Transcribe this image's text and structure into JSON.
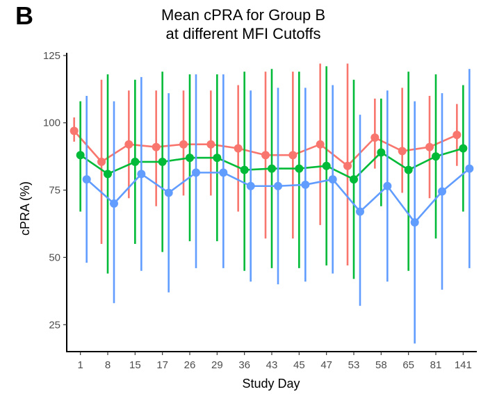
{
  "panel_label": "B",
  "chart_data": {
    "type": "line",
    "title": [
      "Mean cPRA for Group B",
      "at different MFI Cutoffs"
    ],
    "xlabel": "Study Day",
    "ylabel": "cPRA (%)",
    "ylim": [
      15,
      126
    ],
    "yticks": [
      25,
      50,
      75,
      100,
      125
    ],
    "categories": [
      "1",
      "8",
      "15",
      "17",
      "26",
      "29",
      "36",
      "43",
      "45",
      "47",
      "53",
      "58",
      "65",
      "81",
      "141"
    ],
    "grid": false,
    "legend": "none",
    "series": [
      {
        "color": "#F8766D",
        "values": [
          97,
          85.5,
          92,
          91,
          92,
          92,
          90.5,
          88,
          88,
          92,
          84,
          94.5,
          89.5,
          91,
          95.5
        ],
        "lower": [
          93,
          55,
          72,
          69,
          73,
          73,
          67,
          57,
          57,
          62,
          47,
          83,
          74,
          72,
          84
        ],
        "upper": [
          102,
          116,
          112,
          112,
          112,
          112,
          114,
          119,
          119,
          122,
          122,
          109,
          113,
          110,
          107
        ]
      },
      {
        "color": "#00BA38",
        "values": [
          88,
          81,
          85.5,
          85.5,
          87,
          87,
          82.5,
          83,
          83,
          84,
          79,
          89,
          82.5,
          87.5,
          90.5
        ],
        "lower": [
          67,
          44,
          55,
          52,
          56,
          56,
          45,
          46,
          46,
          47,
          42,
          69,
          45,
          57,
          67
        ],
        "upper": [
          108,
          118,
          116,
          119,
          118,
          118,
          119,
          120,
          119,
          121,
          116,
          109,
          119,
          118,
          114
        ]
      },
      {
        "color": "#619CFF",
        "values": [
          79,
          70,
          81,
          74,
          81.5,
          81.5,
          76.5,
          76.5,
          77,
          79,
          67,
          76.5,
          63,
          74.5,
          83
        ],
        "lower": [
          48,
          33,
          45,
          37,
          46,
          46,
          41,
          40,
          41,
          44,
          32,
          41,
          18,
          38,
          46
        ],
        "upper": [
          110,
          108,
          117,
          111,
          118,
          118,
          112,
          113,
          113,
          114,
          103,
          112,
          108,
          111,
          120
        ]
      }
    ]
  }
}
